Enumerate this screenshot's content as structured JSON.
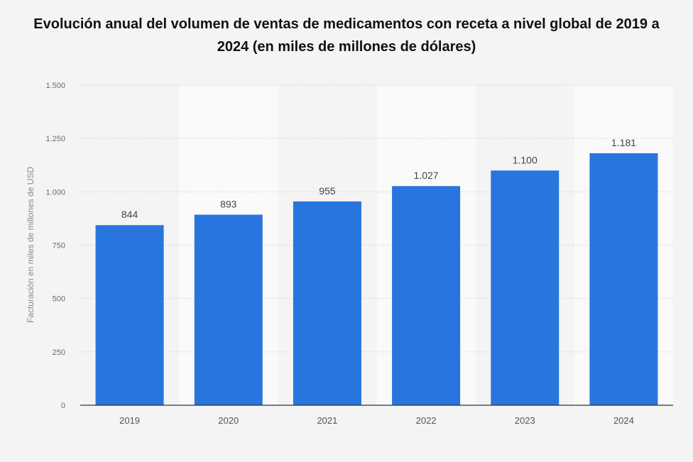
{
  "title": "Evolución anual del volumen de ventas de medicamentos con receta a nivel global de 2019 a 2024 (en miles de millones de dólares)",
  "chart_data": {
    "type": "bar",
    "title": "Evolución anual del volumen de ventas de medicamentos con receta a nivel global de 2019 a 2024 (en miles de millones de dólares)",
    "xlabel": "",
    "ylabel": "Facturación en miles de millones de USD",
    "categories": [
      "2019",
      "2020",
      "2021",
      "2022",
      "2023",
      "2024"
    ],
    "values": [
      844,
      893,
      955,
      1027,
      1100,
      1181
    ],
    "value_labels": [
      "844",
      "893",
      "955",
      "1.027",
      "1.100",
      "1.181"
    ],
    "ylim": [
      0,
      1500
    ],
    "yticks": [
      0,
      250,
      500,
      750,
      1000,
      1250,
      1500
    ],
    "ytick_labels": [
      "0",
      "250",
      "500",
      "750",
      "1.000",
      "1.250",
      "1.500"
    ],
    "bar_color": "#2875de",
    "grid": true,
    "legend": "none"
  }
}
